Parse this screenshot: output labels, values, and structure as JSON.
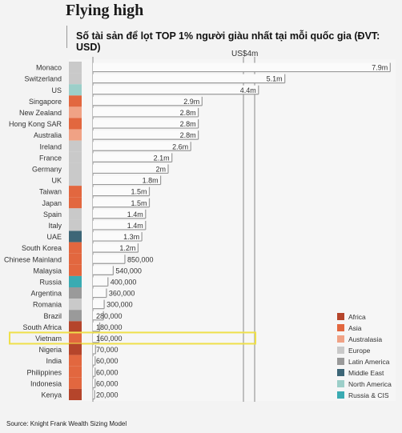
{
  "header": {
    "title": "Flying high",
    "subtitle": "Số tài sản để lọt TOP 1% người giàu nhất tại mỗi quốc gia (ĐVT: USD)",
    "scale_label": "US$4m"
  },
  "footer": {
    "source": "Source: Knight Frank Wealth Sizing Model"
  },
  "colors": {
    "Africa": "#b5452b",
    "Asia": "#e2673f",
    "Australasia": "#f0a285",
    "Europe": "#c9c9c9",
    "Latin America": "#9a9a9a",
    "Middle East": "#3d6677",
    "North America": "#9ccfc9",
    "Russia & CIS": "#3aabb2"
  },
  "chart_data": {
    "type": "bar",
    "orientation": "horizontal",
    "unit": "USD",
    "xlim": [
      0,
      8000000
    ],
    "highlight": "Vietnam",
    "categories": [
      "Monaco",
      "Switzerland",
      "US",
      "Singapore",
      "New Zealand",
      "Hong Kong SAR",
      "Australia",
      "Ireland",
      "France",
      "Germany",
      "UK",
      "Taiwan",
      "Japan",
      "Spain",
      "Italy",
      "UAE",
      "South Korea",
      "Chinese Mainland",
      "Malaysia",
      "Russia",
      "Argentina",
      "Romania",
      "Brazil",
      "South Africa",
      "Vietnam",
      "Nigeria",
      "India",
      "Philippines",
      "Indonesia",
      "Kenya"
    ],
    "values": [
      7900000,
      5100000,
      4400000,
      2900000,
      2800000,
      2800000,
      2800000,
      2600000,
      2100000,
      2000000,
      1800000,
      1500000,
      1500000,
      1400000,
      1400000,
      1300000,
      1200000,
      850000,
      540000,
      400000,
      360000,
      300000,
      280000,
      180000,
      160000,
      70000,
      60000,
      60000,
      60000,
      20000
    ],
    "labels": [
      "7.9m",
      "5.1m",
      "4.4m",
      "2.9m",
      "2.8m",
      "2.8m",
      "2.8m",
      "2.6m",
      "2.1m",
      "2m",
      "1.8m",
      "1.5m",
      "1.5m",
      "1.4m",
      "1.4m",
      "1.3m",
      "1.2m",
      "850,000",
      "540,000",
      "400,000",
      "360,000",
      "300,000",
      "280,000",
      "180,000",
      "160,000",
      "70,000",
      "60,000",
      "60,000",
      "60,000",
      "20,000"
    ],
    "regions": [
      "Europe",
      "Europe",
      "North America",
      "Asia",
      "Australasia",
      "Asia",
      "Australasia",
      "Europe",
      "Europe",
      "Europe",
      "Europe",
      "Asia",
      "Asia",
      "Europe",
      "Europe",
      "Middle East",
      "Asia",
      "Asia",
      "Asia",
      "Russia & CIS",
      "Latin America",
      "Europe",
      "Latin America",
      "Africa",
      "Asia",
      "Africa",
      "Asia",
      "Asia",
      "Asia",
      "Africa"
    ],
    "legend": [
      "Africa",
      "Asia",
      "Australasia",
      "Europe",
      "Latin America",
      "Middle East",
      "North America",
      "Russia & CIS"
    ],
    "legend_position": "bottom-right"
  }
}
